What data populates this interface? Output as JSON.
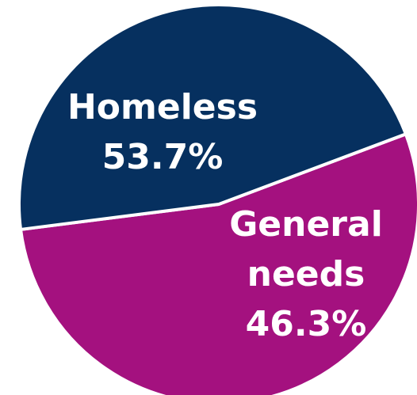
{
  "chart_data": {
    "type": "pie",
    "title": "",
    "slices": [
      {
        "name": "Homeless",
        "label_lines": [
          "Homeless",
          "53.7%"
        ],
        "value": 53.7,
        "color": "#A4117F"
      },
      {
        "name": "General needs",
        "label_lines": [
          "General",
          "needs",
          "46.3%"
        ],
        "value": 46.3,
        "color": "#06305F"
      }
    ],
    "legend": "none"
  }
}
